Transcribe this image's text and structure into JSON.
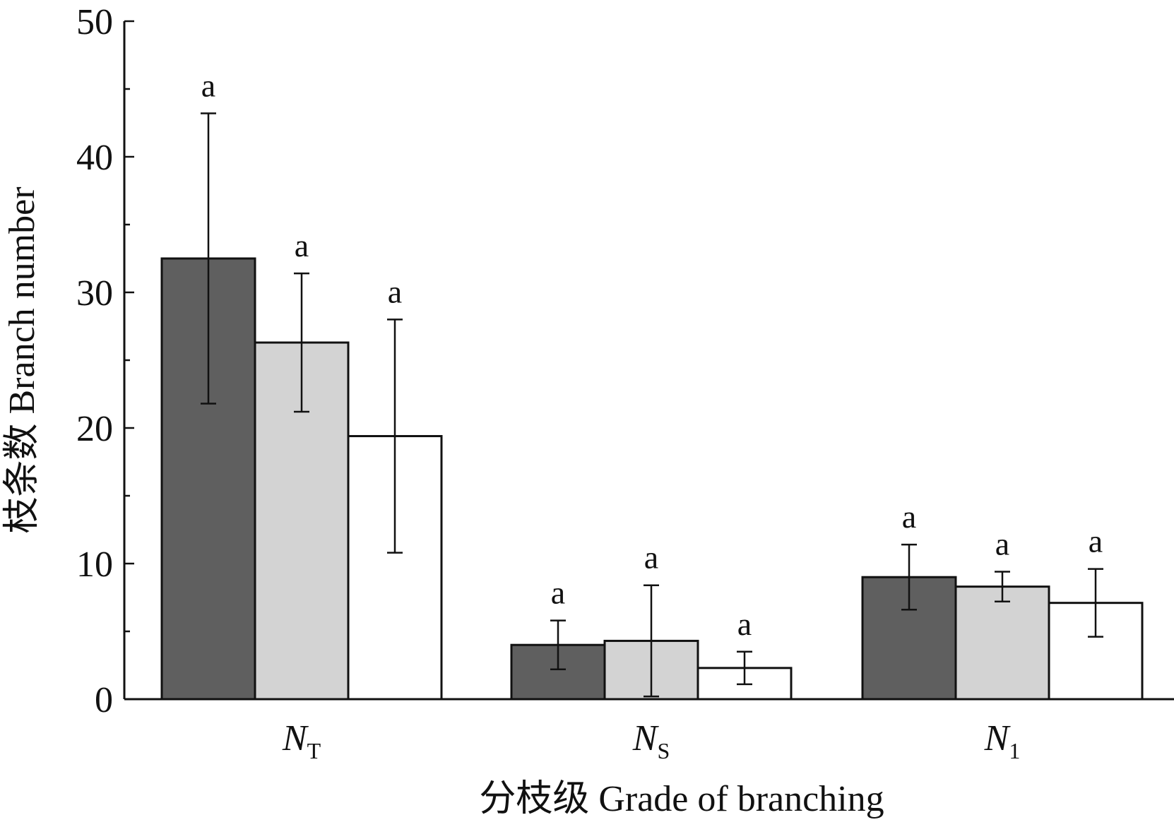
{
  "chart_data": {
    "type": "bar",
    "title": "",
    "xlabel": "分枝级  Grade of branching",
    "ylabel": "枝条数  Branch number",
    "ylim": [
      0,
      50
    ],
    "y_ticks": [
      "0",
      "10",
      "20",
      "30",
      "40",
      "50"
    ],
    "categories": [
      {
        "main": "N",
        "sub": "T"
      },
      {
        "main": "N",
        "sub": "S"
      },
      {
        "main": "N",
        "sub": "1"
      }
    ],
    "series": [
      {
        "values": [
          32.5,
          4.0,
          9.0
        ],
        "errors": [
          10.7,
          1.8,
          2.4
        ],
        "letters": [
          "a",
          "a",
          "a"
        ],
        "fill": "#5f5f5f"
      },
      {
        "values": [
          26.3,
          4.3,
          8.3
        ],
        "errors": [
          5.1,
          4.1,
          1.1
        ],
        "letters": [
          "a",
          "a",
          "a"
        ],
        "fill": "#d3d3d3"
      },
      {
        "values": [
          19.4,
          2.3,
          7.1
        ],
        "errors": [
          8.6,
          1.2,
          2.5
        ],
        "letters": [
          "a",
          "a",
          "a"
        ],
        "fill": "#ffffff"
      }
    ],
    "grid": false,
    "legend": "none"
  }
}
